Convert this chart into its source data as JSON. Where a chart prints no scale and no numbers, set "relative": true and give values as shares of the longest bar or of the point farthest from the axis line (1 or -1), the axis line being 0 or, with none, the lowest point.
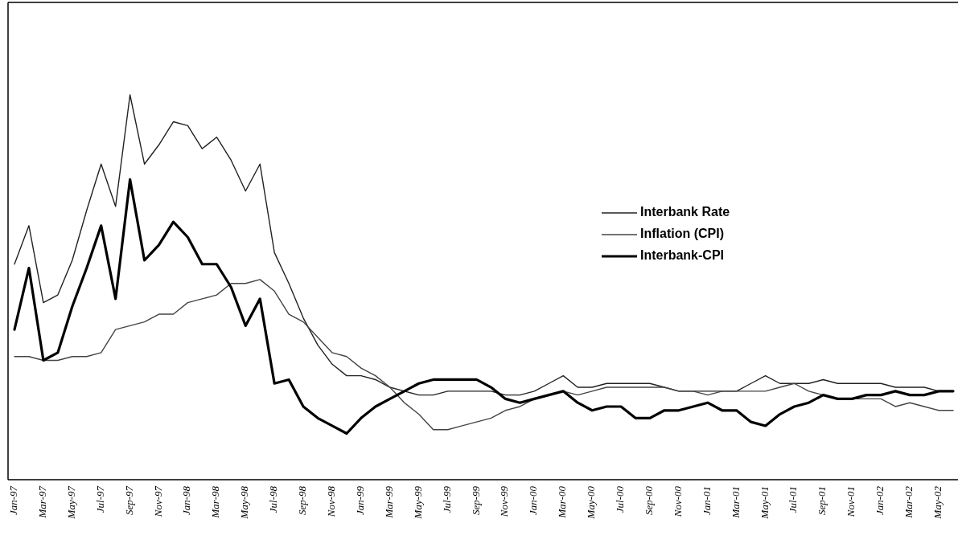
{
  "chart_data": {
    "type": "line",
    "relative": true,
    "tick_labels": "x",
    "legend": "top right",
    "categories": [
      "Jan-97",
      null,
      "Mar-97",
      null,
      "May-97",
      null,
      "Jul-97",
      null,
      "Sep-97",
      null,
      "Nov-97",
      null,
      "Jan-98",
      null,
      "Mar-98",
      null,
      "May-98",
      null,
      "Jul-98",
      null,
      "Sep-98",
      null,
      "Nov-98",
      null,
      "Jan-99",
      null,
      "Mar-99",
      null,
      "May-99",
      null,
      "Jul-99",
      null,
      "Sep-99",
      null,
      "Nov-99",
      null,
      "Jan-00",
      null,
      "Mar-00",
      null,
      "May-00",
      null,
      "Jul-00",
      null,
      "Sep-00",
      null,
      "Nov-00",
      null,
      "Jan-01",
      null,
      "Mar-01",
      null,
      "May-01",
      null,
      "Jul-01",
      null,
      "Sep-01",
      null,
      "Nov-01",
      null,
      "Jan-02",
      null,
      "Mar-02",
      null,
      "May-02",
      null
    ],
    "series": [
      {
        "name": "Interbank Rate",
        "color": "#222222",
        "values": [
          0.56,
          0.66,
          0.46,
          0.48,
          0.57,
          0.7,
          0.82,
          0.71,
          1.0,
          0.82,
          0.87,
          0.93,
          0.92,
          0.86,
          0.89,
          0.83,
          0.75,
          0.82,
          0.59,
          0.51,
          0.42,
          0.35,
          0.3,
          0.27,
          0.27,
          0.26,
          0.24,
          0.23,
          0.22,
          0.22,
          0.23,
          0.23,
          0.23,
          0.23,
          0.22,
          0.22,
          0.23,
          0.25,
          0.27,
          0.24,
          0.24,
          0.25,
          0.25,
          0.25,
          0.25,
          0.24,
          0.23,
          0.23,
          0.23,
          0.23,
          0.23,
          0.25,
          0.27,
          0.25,
          0.25,
          0.25,
          0.26,
          0.25,
          0.25,
          0.25,
          0.25,
          0.24,
          0.24,
          0.24,
          0.23,
          0.23
        ]
      },
      {
        "name": "Inflation (CPI)",
        "color": "#444444",
        "values": [
          0.32,
          0.32,
          0.31,
          0.31,
          0.32,
          0.32,
          0.33,
          0.39,
          0.4,
          0.41,
          0.43,
          0.43,
          0.46,
          0.47,
          0.48,
          0.51,
          0.51,
          0.52,
          0.49,
          0.43,
          0.41,
          0.37,
          0.33,
          0.32,
          0.29,
          0.27,
          0.24,
          0.2,
          0.17,
          0.13,
          0.13,
          0.14,
          0.15,
          0.16,
          0.18,
          0.19,
          0.21,
          0.22,
          0.23,
          0.22,
          0.23,
          0.24,
          0.24,
          0.24,
          0.24,
          0.24,
          0.23,
          0.23,
          0.22,
          0.23,
          0.23,
          0.23,
          0.23,
          0.24,
          0.25,
          0.23,
          0.22,
          0.21,
          0.21,
          0.21,
          0.21,
          0.19,
          0.2,
          0.19,
          0.18,
          0.18
        ]
      },
      {
        "name": "Interbank-CPI",
        "color": "#000000",
        "values": [
          0.39,
          0.55,
          0.31,
          0.33,
          0.45,
          0.55,
          0.66,
          0.47,
          0.78,
          0.57,
          0.61,
          0.67,
          0.63,
          0.56,
          0.56,
          0.5,
          0.4,
          0.47,
          0.25,
          0.26,
          0.19,
          0.16,
          0.14,
          0.12,
          0.16,
          0.19,
          0.21,
          0.23,
          0.25,
          0.26,
          0.26,
          0.26,
          0.26,
          0.24,
          0.21,
          0.2,
          0.21,
          0.22,
          0.23,
          0.2,
          0.18,
          0.19,
          0.19,
          0.16,
          0.16,
          0.18,
          0.18,
          0.19,
          0.2,
          0.18,
          0.18,
          0.15,
          0.14,
          0.17,
          0.19,
          0.2,
          0.22,
          0.21,
          0.21,
          0.22,
          0.22,
          0.23,
          0.22,
          0.22,
          0.23,
          0.23
        ]
      }
    ]
  }
}
